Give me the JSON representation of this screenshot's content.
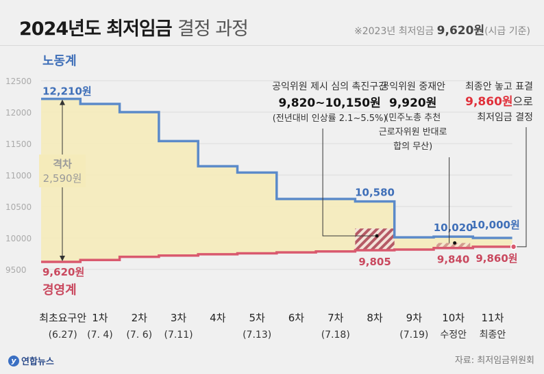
{
  "title_main": "2024년도 최저임금",
  "title_sub": "결정 과정",
  "note_prefix": "※2023년 최저임금",
  "note_value": "9,620원",
  "note_suffix": "(시급 기준)",
  "source": "자료: 최저임금위원회",
  "logo": "연합뉴스",
  "colors": {
    "labor": "#5b8ac9",
    "business": "#d9596e",
    "fill": "#f5ebba",
    "band": "#b55a65",
    "highlight": "#e0303a",
    "grid": "#dddddd"
  },
  "chart_data": {
    "type": "step",
    "ylim": [
      9500,
      12500
    ],
    "yticks": [
      9500,
      10000,
      10500,
      11000,
      11500,
      12000,
      12500
    ],
    "categories": [
      {
        "top": "최초요구안",
        "bottom": "(6.27)"
      },
      {
        "top": "1차",
        "bottom": "(7. 4)"
      },
      {
        "top": "2차",
        "bottom": "(7. 6)"
      },
      {
        "top": "3차",
        "bottom": "(7.11)"
      },
      {
        "top": "4차",
        "bottom": ""
      },
      {
        "top": "5차",
        "bottom": "(7.13)"
      },
      {
        "top": "6차",
        "bottom": ""
      },
      {
        "top": "7차",
        "bottom": "(7.18)"
      },
      {
        "top": "8차",
        "bottom": ""
      },
      {
        "top": "9차",
        "bottom": "(7.19)"
      },
      {
        "top": "10차",
        "bottom": "수정안"
      },
      {
        "top": "11차",
        "bottom": "최종안"
      }
    ],
    "series": [
      {
        "name": "노동계",
        "values": [
          12210,
          12130,
          12000,
          11540,
          11140,
          11040,
          10620,
          10620,
          10580,
          10010,
          10020,
          10000
        ]
      },
      {
        "name": "경영계",
        "values": [
          9620,
          9650,
          9700,
          9720,
          9740,
          9755,
          9770,
          9785,
          9805,
          9815,
          9840,
          9860
        ]
      }
    ],
    "labels": {
      "labor_start": "12,210원",
      "labor_8": "10,580",
      "labor_10": "10,020",
      "labor_11": "10,000원",
      "business_start": "9,620원",
      "business_8": "9,805",
      "business_10": "9,840",
      "business_11": "9,860원"
    },
    "gap_label": "격차",
    "gap_value": "2,590원",
    "promotion_range": [
      9820,
      10150
    ],
    "mediation_range": [
      9830,
      9920
    ],
    "final_value": 9860,
    "annotations": {
      "promo_line1": "공익위원 제시 심의 촉진구간",
      "promo_line2": "9,820~10,150원",
      "promo_line3": "(전년대비 인상률 2.1~5.5%)",
      "med_line1": "공익위원 중재안",
      "med_line2": "9,920원",
      "med_line3": "(민주노총 추천",
      "med_line4": "근로자위원 반대로",
      "med_line5": "합의 무산)",
      "final_line1": "최종안 놓고 표결",
      "final_line2_value": "9,860원",
      "final_line2_suffix": "으로",
      "final_line3": "최저임금 결정"
    }
  }
}
